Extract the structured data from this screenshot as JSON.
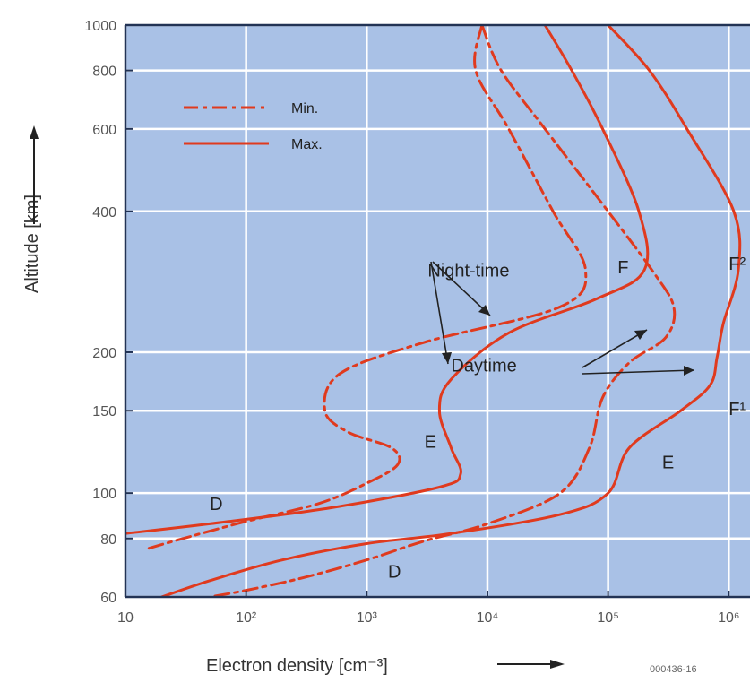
{
  "chart_data": {
    "type": "line",
    "xlabel": "Electron density [cm⁻³]",
    "ylabel": "Altitude [km]",
    "x_scale": "log",
    "y_scale": "log",
    "xlim": [
      10,
      1500000
    ],
    "ylim": [
      60,
      1000
    ],
    "grid": true,
    "x_ticks": [
      {
        "value": 10,
        "label": "10"
      },
      {
        "value": 100,
        "label": "10²"
      },
      {
        "value": 1000,
        "label": "10³"
      },
      {
        "value": 10000,
        "label": "10⁴"
      },
      {
        "value": 100000,
        "label": "10⁵"
      },
      {
        "value": 1000000,
        "label": "10⁶"
      }
    ],
    "y_ticks": [
      {
        "value": 60,
        "label": "60"
      },
      {
        "value": 80,
        "label": "80"
      },
      {
        "value": 100,
        "label": "100"
      },
      {
        "value": 150,
        "label": "150"
      },
      {
        "value": 200,
        "label": "200"
      },
      {
        "value": 400,
        "label": "400"
      },
      {
        "value": 600,
        "label": "600"
      },
      {
        "value": 800,
        "label": "800"
      },
      {
        "value": 1000,
        "label": "1000"
      }
    ],
    "legend": {
      "placement": "top-left",
      "items": [
        {
          "label": "Min.",
          "style": "dashdot"
        },
        {
          "label": "Max.",
          "style": "solid"
        }
      ]
    },
    "colors": {
      "curve": "#e03a1e",
      "plot_bg": "#a9c1e6",
      "grid": "#ffffff",
      "frame": "#223355"
    },
    "series": [
      {
        "name": "Night-time Min.",
        "style": "dashdot",
        "points": [
          [
            9000,
            1000
          ],
          [
            8000,
            800
          ],
          [
            15000,
            600
          ],
          [
            35000,
            400
          ],
          [
            65000,
            300
          ],
          [
            40000,
            250
          ],
          [
            3000,
            210
          ],
          [
            600,
            180
          ],
          [
            450,
            150
          ],
          [
            700,
            135
          ],
          [
            1600,
            125
          ],
          [
            1800,
            115
          ],
          [
            1000,
            105
          ],
          [
            400,
            95
          ],
          [
            100,
            87
          ],
          [
            30,
            80
          ],
          [
            15,
            76
          ]
        ]
      },
      {
        "name": "Night-time Max.",
        "style": "solid",
        "points": [
          [
            30000,
            1000
          ],
          [
            50000,
            800
          ],
          [
            90000,
            600
          ],
          [
            180000,
            400
          ],
          [
            200000,
            300
          ],
          [
            80000,
            260
          ],
          [
            15000,
            220
          ],
          [
            5000,
            175
          ],
          [
            4000,
            150
          ],
          [
            5000,
            125
          ],
          [
            6000,
            110
          ],
          [
            4000,
            103
          ],
          [
            500,
            93
          ],
          [
            50,
            86
          ],
          [
            10,
            82
          ]
        ]
      },
      {
        "name": "Daytime Min.",
        "style": "dashdot",
        "points": [
          [
            9000,
            1000
          ],
          [
            13000,
            800
          ],
          [
            30000,
            600
          ],
          [
            100000,
            400
          ],
          [
            230000,
            300
          ],
          [
            350000,
            250
          ],
          [
            300000,
            215
          ],
          [
            150000,
            190
          ],
          [
            90000,
            160
          ],
          [
            70000,
            125
          ],
          [
            40000,
            100
          ],
          [
            10000,
            86
          ],
          [
            3000,
            79
          ],
          [
            1000,
            72
          ],
          [
            300,
            66
          ],
          [
            100,
            62
          ],
          [
            50,
            60
          ]
        ]
      },
      {
        "name": "Daytime Max.",
        "style": "solid",
        "points": [
          [
            100000,
            1000
          ],
          [
            220000,
            800
          ],
          [
            450000,
            600
          ],
          [
            1100000,
            400
          ],
          [
            1200000,
            300
          ],
          [
            900000,
            230
          ],
          [
            800000,
            195
          ],
          [
            700000,
            170
          ],
          [
            400000,
            150
          ],
          [
            150000,
            125
          ],
          [
            100000,
            100
          ],
          [
            40000,
            90
          ],
          [
            5000,
            82
          ],
          [
            1000,
            78
          ],
          [
            200,
            72
          ],
          [
            50,
            65
          ],
          [
            20,
            60
          ]
        ]
      }
    ],
    "annotations": [
      {
        "text": "Night-time",
        "x": 3200,
        "y": 290
      },
      {
        "text": "Daytime",
        "x": 5000,
        "y": 182
      },
      {
        "text": "F",
        "x": 120000,
        "y": 295
      },
      {
        "text": "F²",
        "x": 1000000,
        "y": 300
      },
      {
        "text": "F¹",
        "x": 1000000,
        "y": 147
      },
      {
        "text": "E",
        "x": 3000,
        "y": 125
      },
      {
        "text": "E",
        "x": 280000,
        "y": 113
      },
      {
        "text": "D",
        "x": 50,
        "y": 92
      },
      {
        "text": "D",
        "x": 1500,
        "y": 66
      }
    ]
  },
  "figure_id": "000436-16"
}
